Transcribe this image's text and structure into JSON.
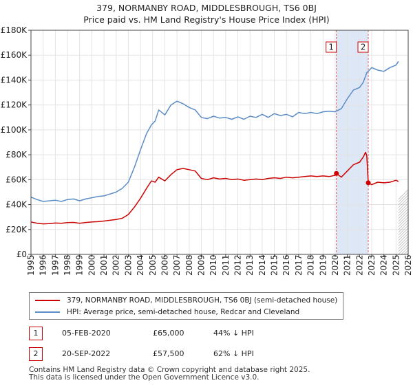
{
  "title_line1": "379, NORMANBY ROAD, MIDDLESBROUGH, TS6 0BJ",
  "title_line2": "Price paid vs. HM Land Registry's House Price Index (HPI)",
  "chart_data": {
    "type": "line",
    "title": "379, NORMANBY ROAD, MIDDLESBROUGH, TS6 0BJ — Price paid vs. HM Land Registry's House Price Index (HPI)",
    "xlabel": "",
    "ylabel": "",
    "xlim": [
      1995,
      2026
    ],
    "ylim": [
      0,
      180000
    ],
    "grid": true,
    "x_ticks": [
      1995,
      1996,
      1997,
      1998,
      1999,
      2000,
      2001,
      2002,
      2003,
      2004,
      2005,
      2006,
      2007,
      2008,
      2009,
      2010,
      2011,
      2012,
      2013,
      2014,
      2015,
      2016,
      2017,
      2018,
      2019,
      2020,
      2021,
      2022,
      2023,
      2024,
      2025,
      2026
    ],
    "y_ticks": [
      0,
      20000,
      40000,
      60000,
      80000,
      100000,
      120000,
      140000,
      160000,
      180000
    ],
    "y_tick_labels": [
      "£0",
      "£20K",
      "£40K",
      "£60K",
      "£80K",
      "£100K",
      "£120K",
      "£140K",
      "£160K",
      "£180K"
    ],
    "shaded_period": [
      2020.1,
      2022.72
    ],
    "series": [
      {
        "name": "379, NORMANBY ROAD, MIDDLESBROUGH, TS6 0BJ (semi-detached house)",
        "color": "#cc0000",
        "x": [
          1995.0,
          1995.5,
          1996.0,
          1996.5,
          1997.0,
          1997.5,
          1998.0,
          1998.5,
          1999.0,
          1999.5,
          2000.0,
          2000.5,
          2001.0,
          2001.5,
          2002.0,
          2002.5,
          2003.0,
          2003.5,
          2004.0,
          2004.5,
          2004.9,
          2005.2,
          2005.5,
          2006.0,
          2006.5,
          2007.0,
          2007.5,
          2008.0,
          2008.5,
          2009.0,
          2009.5,
          2010.0,
          2010.5,
          2011.0,
          2011.5,
          2012.0,
          2012.5,
          2013.0,
          2013.5,
          2014.0,
          2014.5,
          2015.0,
          2015.5,
          2016.0,
          2016.5,
          2017.0,
          2017.5,
          2018.0,
          2018.5,
          2019.0,
          2019.5,
          2020.0,
          2020.1,
          2020.5,
          2021.0,
          2021.5,
          2022.0,
          2022.3,
          2022.5,
          2022.6,
          2022.72,
          2023.0,
          2023.5,
          2024.0,
          2024.5,
          2025.0,
          2025.2
        ],
        "values": [
          26000,
          25000,
          24500,
          24700,
          25200,
          25000,
          25500,
          25700,
          25000,
          25600,
          26000,
          26300,
          26800,
          27400,
          28000,
          29000,
          32000,
          38000,
          45000,
          53000,
          59000,
          58000,
          62000,
          59000,
          64000,
          68000,
          69000,
          68000,
          67000,
          61000,
          60000,
          61500,
          60500,
          61000,
          60000,
          60500,
          59500,
          60000,
          60500,
          60000,
          61000,
          61500,
          61000,
          62000,
          61500,
          62000,
          62500,
          63000,
          62500,
          63000,
          62500,
          63500,
          65000,
          62000,
          67000,
          72000,
          74000,
          78000,
          82000,
          79000,
          57500,
          56000,
          58000,
          57500,
          58000,
          59500,
          58500
        ]
      },
      {
        "name": "HPI: Average price, semi-detached house, Redcar and Cleveland",
        "color": "#5b8cc6",
        "x": [
          1995.0,
          1995.5,
          1996.0,
          1996.5,
          1997.0,
          1997.5,
          1998.0,
          1998.5,
          1999.0,
          1999.5,
          2000.0,
          2000.5,
          2001.0,
          2001.5,
          2002.0,
          2002.5,
          2003.0,
          2003.5,
          2004.0,
          2004.5,
          2004.9,
          2005.2,
          2005.5,
          2006.0,
          2006.5,
          2007.0,
          2007.5,
          2008.0,
          2008.5,
          2009.0,
          2009.5,
          2010.0,
          2010.5,
          2011.0,
          2011.5,
          2012.0,
          2012.5,
          2013.0,
          2013.5,
          2014.0,
          2014.5,
          2015.0,
          2015.5,
          2016.0,
          2016.5,
          2017.0,
          2017.5,
          2018.0,
          2018.5,
          2019.0,
          2019.5,
          2020.0,
          2020.5,
          2021.0,
          2021.5,
          2022.0,
          2022.3,
          2022.6,
          2022.72,
          2023.0,
          2023.5,
          2024.0,
          2024.5,
          2025.0,
          2025.2
        ],
        "values": [
          46000,
          44000,
          42500,
          43000,
          43500,
          42500,
          44000,
          44500,
          43000,
          44500,
          45500,
          46500,
          47000,
          48500,
          50000,
          53000,
          58000,
          70000,
          84000,
          97000,
          104000,
          107000,
          116000,
          112000,
          120000,
          123000,
          121000,
          118000,
          116000,
          110000,
          109000,
          111000,
          109500,
          110000,
          108500,
          110500,
          108500,
          111000,
          110000,
          112500,
          110000,
          113000,
          111500,
          112500,
          110500,
          114000,
          113000,
          114000,
          113000,
          114500,
          115000,
          114500,
          117000,
          125000,
          132000,
          134000,
          138000,
          146000,
          147000,
          150000,
          148000,
          147000,
          150000,
          152000,
          155000
        ]
      }
    ],
    "annotations": [
      {
        "label": "1",
        "x": 2020.1,
        "y": 65000
      },
      {
        "label": "2",
        "x": 2022.72,
        "y": 57500
      }
    ]
  },
  "legend": {
    "items": [
      {
        "label": "379, NORMANBY ROAD, MIDDLESBROUGH, TS6 0BJ (semi-detached house)",
        "color": "#cc0000"
      },
      {
        "label": "HPI: Average price, semi-detached house, Redcar and Cleveland",
        "color": "#5b8cc6"
      }
    ]
  },
  "transactions": [
    {
      "num": "1",
      "date": "05-FEB-2020",
      "price": "£65,000",
      "hpi": "44% ↓ HPI"
    },
    {
      "num": "2",
      "date": "20-SEP-2022",
      "price": "£57,500",
      "hpi": "62% ↓ HPI"
    }
  ],
  "footer_line1": "Contains HM Land Registry data © Crown copyright and database right 2025.",
  "footer_line2": "This data is licensed under the Open Government Licence v3.0."
}
